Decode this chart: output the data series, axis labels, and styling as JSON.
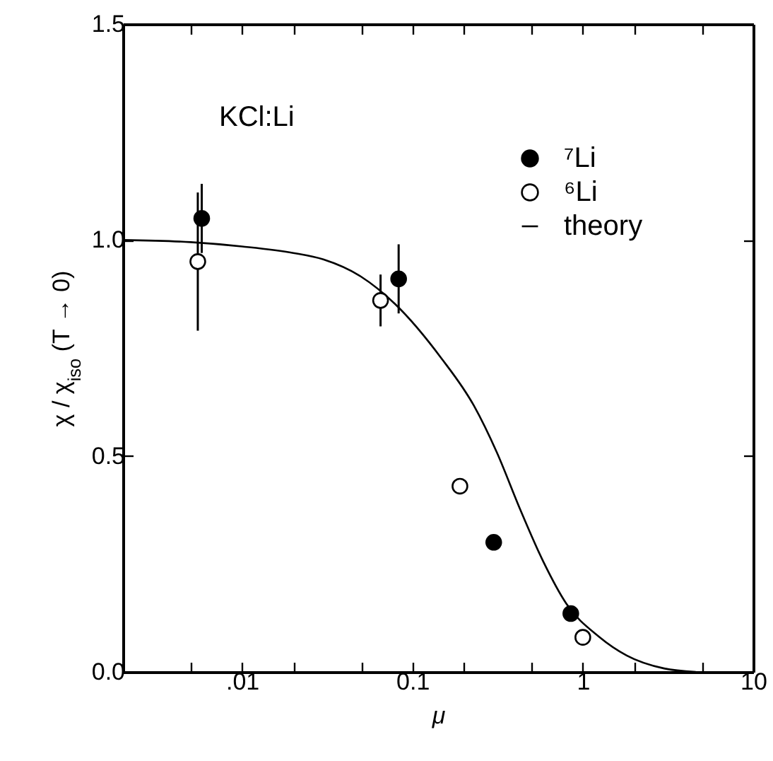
{
  "chart_data": {
    "type": "scatter",
    "xlabel": "μ",
    "ylabel": "χ / χ$_{iso}$   (T → 0)",
    "annotations": [
      "KCl:Li"
    ],
    "log": "x",
    "grid": false,
    "legend": "top right",
    "xlim": [
      0.002,
      10
    ],
    "ylim": [
      0,
      1.5
    ],
    "xticks": [
      {
        "value": 0.005,
        "label": null
      },
      {
        "value": 0.01,
        "label": ".01"
      },
      {
        "value": 0.02,
        "label": null
      },
      {
        "value": 0.05,
        "label": null
      },
      0.1,
      {
        "value": 0.2,
        "label": null
      },
      {
        "value": 0.5,
        "label": null
      },
      1,
      {
        "value": 2,
        "label": null
      },
      {
        "value": 5,
        "label": null
      },
      10
    ],
    "yticks": [
      {
        "value": 0,
        "label": "0.0"
      },
      0.5,
      {
        "value": 1,
        "label": "1.0"
      },
      1.5
    ],
    "series": [
      {
        "name": "⁷Li",
        "marker": "circle",
        "color": "#000000",
        "x": [
          0.0058,
          0.083,
          0.3,
          0.85
        ],
        "values": [
          1.05,
          0.91,
          0.3,
          0.135
        ],
        "errors": [
          0.08,
          0.08,
          null,
          null
        ]
      },
      {
        "name": "⁶Li",
        "marker": "circle",
        "color": "#ffffff",
        "x": [
          0.0055,
          0.065,
          0.19,
          1.0
        ],
        "values": [
          0.95,
          0.86,
          0.43,
          0.08
        ],
        "errors": [
          0.16,
          0.06,
          null,
          null
        ]
      },
      {
        "name": "theory",
        "type": "line",
        "color": "#000000",
        "line_style": "solid",
        "x": [
          0.002,
          0.005,
          0.01,
          0.02,
          0.03,
          0.05,
          0.079,
          0.148,
          0.229,
          0.313,
          0.428,
          0.585,
          0.8,
          1.24,
          1.81,
          3,
          4.6
        ],
        "values": [
          1.0,
          0.995,
          0.985,
          0.97,
          0.955,
          0.915,
          0.852,
          0.726,
          0.617,
          0.508,
          0.377,
          0.256,
          0.158,
          0.082,
          0.038,
          0.008,
          0.0
        ]
      }
    ]
  }
}
